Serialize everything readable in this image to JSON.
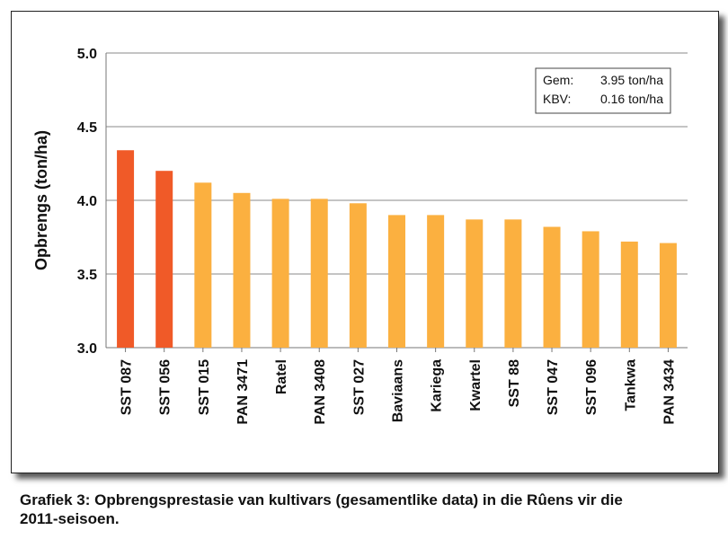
{
  "chart_data": {
    "type": "bar",
    "categories": [
      "SST 087",
      "SST 056",
      "SST 015",
      "PAN 3471",
      "Ratel",
      "PAN 3408",
      "SST 027",
      "Baviaans",
      "Kariega",
      "Kwartel",
      "SST 88",
      "SST 047",
      "SST 096",
      "Tankwa",
      "PAN 3434"
    ],
    "values": [
      4.34,
      4.2,
      4.12,
      4.05,
      4.01,
      4.01,
      3.98,
      3.9,
      3.9,
      3.87,
      3.87,
      3.82,
      3.79,
      3.72,
      3.71
    ],
    "highlight_colors": [
      "#f05a28",
      "#f05a28",
      "#fbb040",
      "#fbb040",
      "#fbb040",
      "#fbb040",
      "#fbb040",
      "#fbb040",
      "#fbb040",
      "#fbb040",
      "#fbb040",
      "#fbb040",
      "#fbb040",
      "#fbb040",
      "#fbb040"
    ],
    "ylabel": "Opbrengs (ton/ha)",
    "xlabel": "",
    "ylim": [
      3.0,
      5.0
    ],
    "yticks": [
      "3.0",
      "3.5",
      "4.0",
      "4.5",
      "5.0"
    ],
    "grid": true,
    "legend": {
      "placement": "top-right",
      "lines": [
        {
          "label": "Gem:",
          "value": "3.95 ton/ha"
        },
        {
          "label": "KBV:",
          "value": "0.16 ton/ha"
        }
      ]
    }
  },
  "caption": {
    "line1": "Grafiek 3: Opbrengsprestasie van kultivars (gesamentlike data) in die Rûens vir die",
    "line2": "2011-seisoen."
  }
}
